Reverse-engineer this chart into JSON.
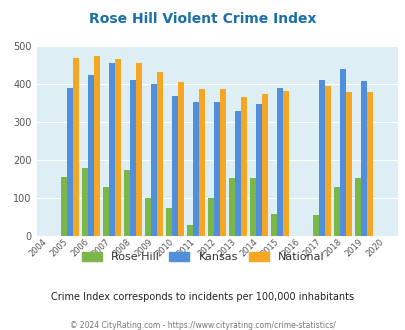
{
  "title": "Rose Hill Violent Crime Index",
  "years": [
    2004,
    2005,
    2006,
    2007,
    2008,
    2009,
    2010,
    2011,
    2012,
    2013,
    2014,
    2015,
    2016,
    2017,
    2018,
    2019,
    2020
  ],
  "rose_hill": [
    0,
    155,
    180,
    128,
    175,
    100,
    73,
    28,
    100,
    153,
    153,
    57,
    0,
    55,
    128,
    153,
    0
  ],
  "kansas": [
    0,
    390,
    425,
    455,
    412,
    400,
    368,
    354,
    353,
    329,
    349,
    391,
    0,
    410,
    440,
    409,
    0
  ],
  "national": [
    0,
    470,
    473,
    467,
    455,
    432,
    405,
    388,
    387,
    366,
    375,
    383,
    0,
    394,
    379,
    379,
    0
  ],
  "rose_hill_color": "#7ab648",
  "kansas_color": "#4f8fdc",
  "national_color": "#f5a623",
  "bg_color": "#ddeef5",
  "ylim": [
    0,
    500
  ],
  "yticks": [
    0,
    100,
    200,
    300,
    400,
    500
  ],
  "subtitle": "Crime Index corresponds to incidents per 100,000 inhabitants",
  "footer": "© 2024 CityRating.com - https://www.cityrating.com/crime-statistics/",
  "title_color": "#1a6fa8",
  "subtitle_color": "#222222",
  "footer_color": "#777777",
  "footer_link_color": "#4f8fdc"
}
